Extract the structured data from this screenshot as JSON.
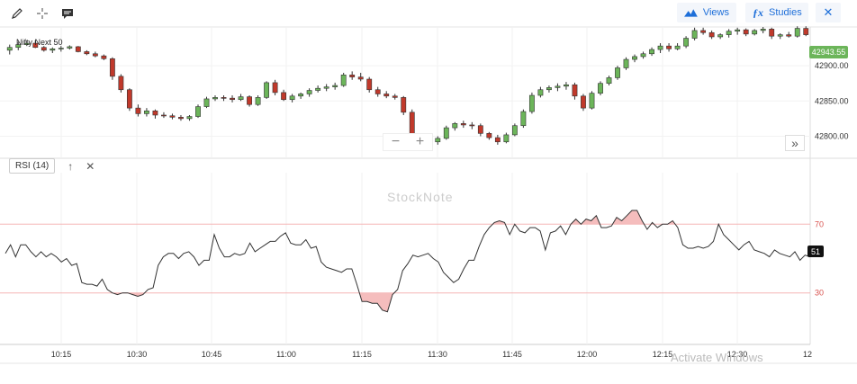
{
  "toolbar": {
    "views_label": "Views",
    "studies_label": "Studies"
  },
  "chart_data": [
    {
      "type": "candlestick",
      "title": "Nifty Next 50",
      "last_price_label": "42943.55",
      "y_ticks": [
        "42900.00",
        "42850.00",
        "42800.00"
      ],
      "ylim": [
        42770,
        42955
      ],
      "ohlc": [
        [
          42922,
          42930,
          42916,
          42926
        ],
        [
          42926,
          42934,
          42922,
          42930
        ],
        [
          42930,
          42935,
          42928,
          42932
        ],
        [
          42932,
          42936,
          42925,
          42926
        ],
        [
          42926,
          42928,
          42920,
          42922
        ],
        [
          42922,
          42926,
          42918,
          42924
        ],
        [
          42924,
          42928,
          42920,
          42925
        ],
        [
          42925,
          42929,
          42923,
          42927
        ],
        [
          42927,
          42928,
          42919,
          42920
        ],
        [
          42920,
          42922,
          42915,
          42917
        ],
        [
          42917,
          42920,
          42912,
          42914
        ],
        [
          42914,
          42916,
          42908,
          42910
        ],
        [
          42910,
          42912,
          42880,
          42885
        ],
        [
          42885,
          42888,
          42862,
          42866
        ],
        [
          42866,
          42868,
          42836,
          42840
        ],
        [
          42840,
          42845,
          42828,
          42832
        ],
        [
          42832,
          42840,
          42828,
          42836
        ],
        [
          42836,
          42838,
          42825,
          42830
        ],
        [
          42830,
          42834,
          42826,
          42829
        ],
        [
          42829,
          42832,
          42824,
          42827
        ],
        [
          42827,
          42830,
          42822,
          42825
        ],
        [
          42825,
          42830,
          42822,
          42828
        ],
        [
          42828,
          42845,
          42826,
          42842
        ],
        [
          42842,
          42856,
          42840,
          42853
        ],
        [
          42853,
          42858,
          42850,
          42855
        ],
        [
          42855,
          42858,
          42850,
          42854
        ],
        [
          42854,
          42858,
          42848,
          42852
        ],
        [
          42852,
          42860,
          42850,
          42856
        ],
        [
          42856,
          42858,
          42842,
          42845
        ],
        [
          42845,
          42858,
          42843,
          42855
        ],
        [
          42855,
          42878,
          42853,
          42876
        ],
        [
          42876,
          42880,
          42858,
          42862
        ],
        [
          42862,
          42866,
          42850,
          42852
        ],
        [
          42852,
          42860,
          42848,
          42857
        ],
        [
          42857,
          42862,
          42853,
          42860
        ],
        [
          42860,
          42868,
          42856,
          42865
        ],
        [
          42865,
          42872,
          42862,
          42868
        ],
        [
          42868,
          42874,
          42864,
          42870
        ],
        [
          42870,
          42876,
          42866,
          42872
        ],
        [
          42872,
          42890,
          42870,
          42887
        ],
        [
          42887,
          42892,
          42880,
          42884
        ],
        [
          42884,
          42890,
          42878,
          42881
        ],
        [
          42881,
          42884,
          42862,
          42866
        ],
        [
          42866,
          42870,
          42856,
          42860
        ],
        [
          42860,
          42864,
          42854,
          42857
        ],
        [
          42857,
          42860,
          42852,
          42855
        ],
        [
          42855,
          42857,
          42830,
          42834
        ],
        [
          42834,
          42838,
          42790,
          42795
        ],
        [
          42795,
          42800,
          42785,
          42790
        ],
        [
          42790,
          42798,
          42782,
          42792
        ],
        [
          42792,
          42800,
          42788,
          42797
        ],
        [
          42797,
          42815,
          42795,
          42812
        ],
        [
          42812,
          42820,
          42808,
          42818
        ],
        [
          42818,
          42822,
          42812,
          42816
        ],
        [
          42816,
          42820,
          42810,
          42815
        ],
        [
          42815,
          42818,
          42800,
          42804
        ],
        [
          42804,
          42806,
          42795,
          42798
        ],
        [
          42798,
          42802,
          42788,
          42792
        ],
        [
          42792,
          42805,
          42790,
          42802
        ],
        [
          42802,
          42818,
          42800,
          42815
        ],
        [
          42815,
          42838,
          42812,
          42835
        ],
        [
          42835,
          42862,
          42832,
          42858
        ],
        [
          42858,
          42870,
          42855,
          42866
        ],
        [
          42866,
          42872,
          42862,
          42869
        ],
        [
          42869,
          42875,
          42864,
          42871
        ],
        [
          42871,
          42877,
          42866,
          42873
        ],
        [
          42873,
          42876,
          42852,
          42857
        ],
        [
          42857,
          42860,
          42836,
          42840
        ],
        [
          42840,
          42864,
          42838,
          42861
        ],
        [
          42861,
          42878,
          42858,
          42875
        ],
        [
          42875,
          42886,
          42872,
          42883
        ],
        [
          42883,
          42900,
          42880,
          42897
        ],
        [
          42897,
          42912,
          42894,
          42909
        ],
        [
          42909,
          42916,
          42905,
          42913
        ],
        [
          42913,
          42920,
          42910,
          42917
        ],
        [
          42917,
          42926,
          42914,
          42923
        ],
        [
          42923,
          42932,
          42918,
          42928
        ],
        [
          42928,
          42932,
          42920,
          42924
        ],
        [
          42924,
          42932,
          42922,
          42928
        ],
        [
          42928,
          42942,
          42925,
          42939
        ],
        [
          42939,
          42954,
          42936,
          42950
        ],
        [
          42950,
          42954,
          42944,
          42947
        ],
        [
          42947,
          42950,
          42938,
          42941
        ],
        [
          42941,
          42946,
          42938,
          42944
        ],
        [
          42944,
          42952,
          42940,
          42949
        ],
        [
          42949,
          42954,
          42944,
          42951
        ],
        [
          42951,
          42953,
          42942,
          42945
        ],
        [
          42945,
          42952,
          42943,
          42950
        ],
        [
          42950,
          42955,
          42946,
          42952
        ],
        [
          42952,
          42954,
          42938,
          42942
        ],
        [
          42942,
          42946,
          42938,
          42944
        ],
        [
          42944,
          42948,
          42940,
          42942
        ],
        [
          42942,
          42956,
          42940,
          42953
        ],
        [
          42953,
          42956,
          42942,
          42944
        ]
      ]
    },
    {
      "type": "line",
      "title": "RSI (14)",
      "last_value_label": "51",
      "ylim": [
        0,
        100
      ],
      "y_ticks": [
        "70",
        "30"
      ],
      "levels": [
        70,
        30
      ],
      "x_tick_labels": [
        "10:15",
        "10:30",
        "10:45",
        "11:00",
        "11:15",
        "11:30",
        "11:45",
        "12:00",
        "12:15",
        "12:30",
        "12"
      ],
      "values": [
        53,
        58,
        51,
        58,
        58,
        54,
        51,
        54,
        51,
        53,
        51,
        48,
        50,
        46,
        47,
        36,
        35,
        35,
        34,
        38,
        32,
        30,
        29,
        30,
        30,
        29,
        28,
        29,
        32,
        33,
        46,
        51,
        53,
        53,
        50,
        53,
        54,
        51,
        46,
        49,
        49,
        64,
        56,
        51,
        51,
        53,
        52,
        53,
        59,
        54,
        56,
        58,
        60,
        60,
        63,
        65,
        59,
        58,
        58,
        61,
        56,
        57,
        48,
        45,
        44,
        43,
        42,
        44,
        44,
        35,
        25,
        25,
        24,
        24,
        20,
        19,
        29,
        32,
        43,
        47,
        52,
        51,
        52,
        53,
        50,
        48,
        42,
        39,
        36,
        38,
        44,
        49,
        49,
        57,
        64,
        68,
        71,
        72,
        71,
        64,
        70,
        66,
        65,
        68,
        68,
        66,
        55,
        65,
        66,
        69,
        64,
        70,
        73,
        70,
        73,
        72,
        75,
        68,
        68,
        69,
        74,
        72,
        75,
        78,
        78,
        72,
        67,
        71,
        68,
        70,
        70,
        72,
        68,
        58,
        56,
        56,
        57,
        56,
        57,
        60,
        70,
        64,
        61,
        58,
        55,
        58,
        60,
        55,
        54,
        53,
        51,
        55,
        53,
        52,
        51,
        54,
        49,
        52,
        51
      ]
    }
  ],
  "watermark": "StockNote",
  "activate_text": "Activate Windows",
  "nav": {
    "zoom_out": "−",
    "zoom_in": "+",
    "expand": "»"
  }
}
